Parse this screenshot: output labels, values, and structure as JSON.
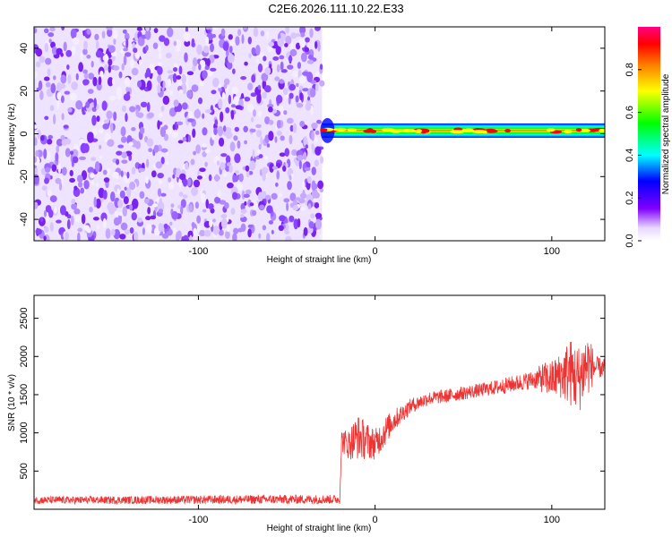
{
  "figure": {
    "title": "C2E6.2026.111.10.22.E33"
  },
  "chart_data": [
    {
      "type": "heatmap",
      "name": "spectrogram",
      "xlabel": "Height of straight line (km)",
      "ylabel": "Frequency (Hz)",
      "xlim": [
        -193,
        130
      ],
      "ylim": [
        -50,
        50
      ],
      "x_ticks": [
        -100,
        0,
        100
      ],
      "x_tick_labels": [
        "-100",
        "0",
        "100"
      ],
      "y_ticks": [
        -40,
        -20,
        0,
        20,
        40
      ],
      "y_tick_labels": [
        "-40",
        "-20",
        "0",
        "20",
        "40"
      ],
      "noise_region_x": [
        -193,
        -30
      ],
      "signal_line_x": [
        -30,
        130
      ],
      "signal_line_y_approx": 1.5,
      "colorbar": {
        "label": "Normalized spectral amplitude",
        "range": [
          0,
          1
        ],
        "ticks": [
          0,
          0.2,
          0.4,
          0.6,
          0.8
        ],
        "tick_labels": [
          "0.0",
          "0.2",
          "0.4",
          "0.6",
          "0.8"
        ],
        "colormap": [
          "#ffffff",
          "#8000ff",
          "#0000ff",
          "#00ffff",
          "#00ff00",
          "#ffff00",
          "#ff8000",
          "#ff0000",
          "#ff0080"
        ]
      },
      "grid": false
    },
    {
      "type": "line",
      "name": "snr",
      "xlabel": "Height of straight line (km)",
      "ylabel": "SNR (10 * v/v)",
      "xlim": [
        -193,
        130
      ],
      "ylim": [
        0,
        2800
      ],
      "x_ticks": [
        -100,
        0,
        100
      ],
      "x_tick_labels": [
        "-100",
        "0",
        "100"
      ],
      "y_ticks": [
        500,
        1000,
        1500,
        2000,
        2500
      ],
      "y_tick_labels": [
        "500",
        "1000",
        "1500",
        "2000",
        "2500"
      ],
      "color": "#ee3333",
      "grid": false,
      "series": [
        {
          "x": [
            -193,
            -150,
            -100,
            -50,
            -20,
            -19,
            -15,
            -10,
            -5,
            0,
            5,
            10,
            15,
            20,
            30,
            40,
            50,
            60,
            70,
            80,
            90,
            95,
            100,
            105,
            110,
            115,
            120,
            125,
            130
          ],
          "values": [
            120,
            120,
            125,
            130,
            130,
            900,
            850,
            950,
            900,
            850,
            1000,
            1150,
            1250,
            1350,
            1450,
            1480,
            1520,
            1560,
            1600,
            1650,
            1700,
            1720,
            1700,
            1750,
            1800,
            1700,
            1900,
            1850,
            1850
          ],
          "spread": [
            50,
            50,
            55,
            60,
            60,
            150,
            200,
            300,
            250,
            200,
            200,
            150,
            120,
            100,
            90,
            90,
            90,
            90,
            100,
            110,
            120,
            200,
            250,
            300,
            450,
            450,
            450,
            150,
            120
          ]
        }
      ]
    }
  ]
}
